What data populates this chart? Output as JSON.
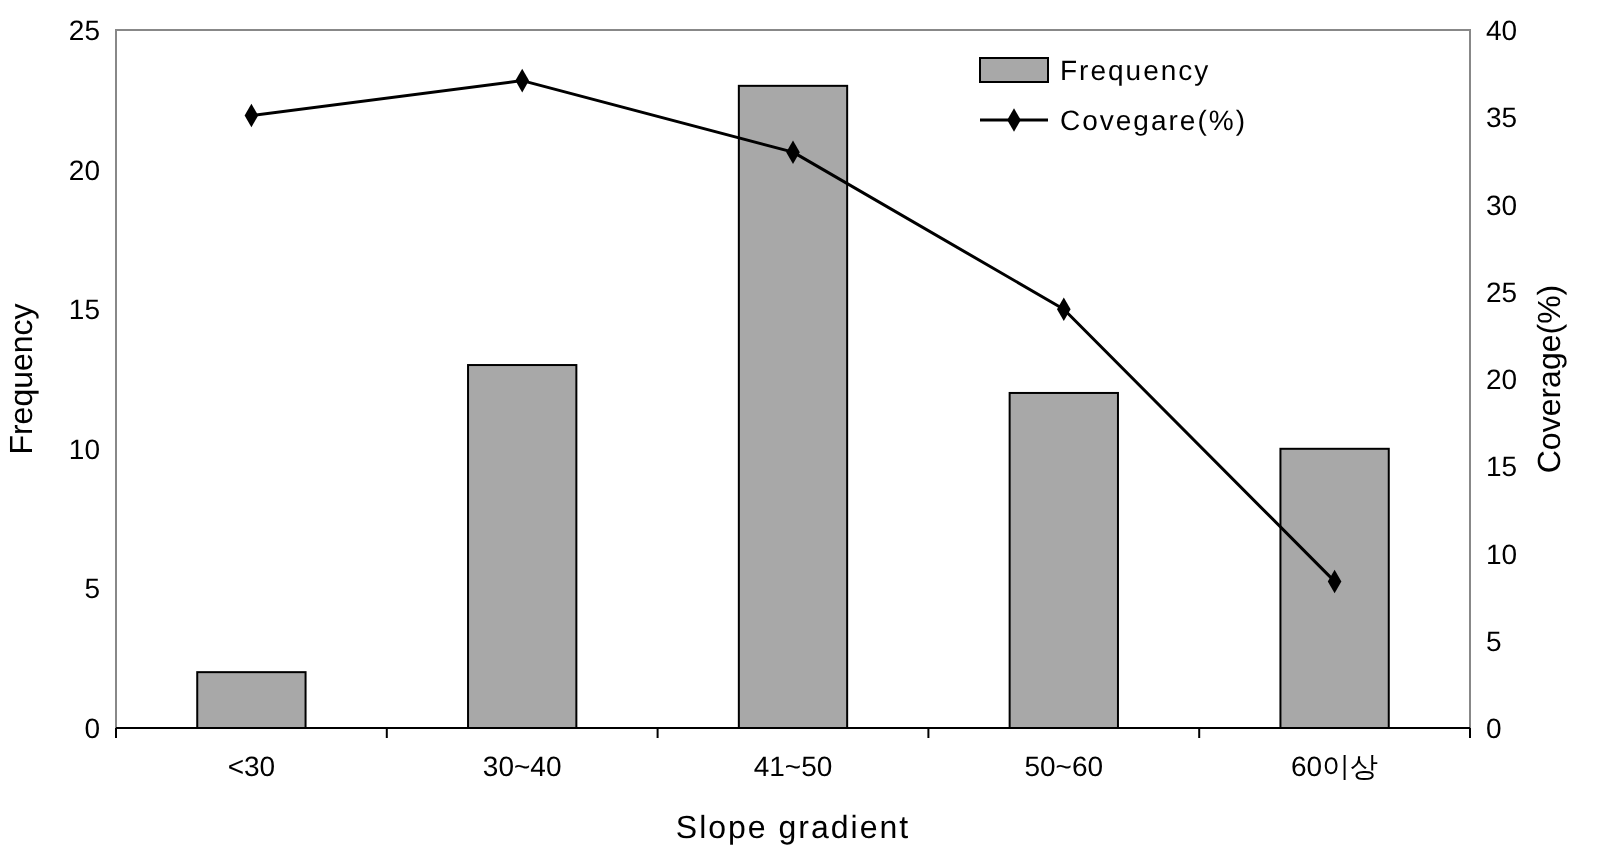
{
  "chart_data": {
    "type": "bar",
    "xlabel": "Slope gradient",
    "ylabel": "Frequency",
    "y2label": "Coverage(%)",
    "categories": [
      "<30",
      "30~40",
      "41~50",
      "50~60",
      "60이상"
    ],
    "series": [
      {
        "name": "Frequency",
        "color": "#a8a8a8",
        "values": [
          2,
          13,
          23,
          12,
          10
        ]
      },
      {
        "name": "Covegare(%)",
        "type": "line",
        "axis": "y2",
        "color": "#000000",
        "marker": "diamond",
        "values": [
          35.1,
          37.1,
          33.0,
          24.0,
          8.4
        ]
      }
    ],
    "ylim": [
      0,
      25
    ],
    "yticks": [
      0,
      5,
      10,
      15,
      20,
      25
    ],
    "y2lim": [
      0,
      40
    ],
    "y2ticks": [
      0,
      5,
      10,
      15,
      20,
      25,
      30,
      35,
      40
    ],
    "grid": false,
    "legend": "top right"
  }
}
